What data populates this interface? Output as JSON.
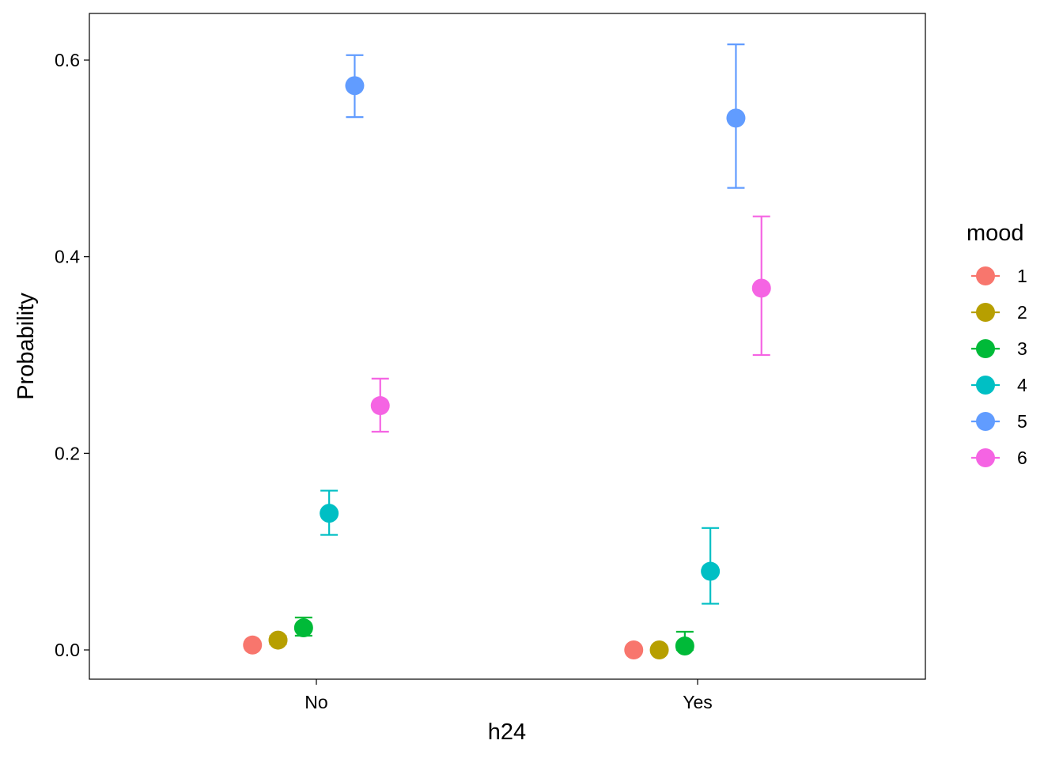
{
  "chart_data": {
    "type": "scatter",
    "title": "",
    "xlabel": "h24",
    "ylabel": "Probability",
    "categories": [
      "No",
      "Yes"
    ],
    "ylim": [
      -0.07,
      0.645
    ],
    "yticks": [
      0.0,
      0.2,
      0.4,
      0.6
    ],
    "ytick_labels": [
      "0.0",
      "0.2",
      "0.4",
      "0.6"
    ],
    "grid": false,
    "legend": {
      "title": "mood",
      "placement": "right"
    },
    "series": [
      {
        "name": "1",
        "color": "#F8766D",
        "values": [
          0.005,
          0.0
        ],
        "lower": [
          0.002,
          0.0
        ],
        "upper": [
          0.008,
          0.001
        ]
      },
      {
        "name": "2",
        "color": "#B79F00",
        "values": [
          0.01,
          0.0
        ],
        "lower": [
          0.006,
          0.0
        ],
        "upper": [
          0.014,
          0.001
        ]
      },
      {
        "name": "3",
        "color": "#00BA38",
        "values": [
          0.0225,
          0.004
        ],
        "lower": [
          0.0145,
          0.0
        ],
        "upper": [
          0.033,
          0.0185
        ]
      },
      {
        "name": "4",
        "color": "#00BFC4",
        "values": [
          0.139,
          0.08
        ],
        "lower": [
          0.117,
          0.047
        ],
        "upper": [
          0.162,
          0.124
        ]
      },
      {
        "name": "5",
        "color": "#619CFF",
        "values": [
          0.574,
          0.541
        ],
        "lower": [
          0.542,
          0.47
        ],
        "upper": [
          0.605,
          0.616
        ]
      },
      {
        "name": "6",
        "color": "#F564E3",
        "values": [
          0.2485,
          0.368
        ],
        "lower": [
          0.222,
          0.3
        ],
        "upper": [
          0.276,
          0.441
        ]
      }
    ]
  }
}
